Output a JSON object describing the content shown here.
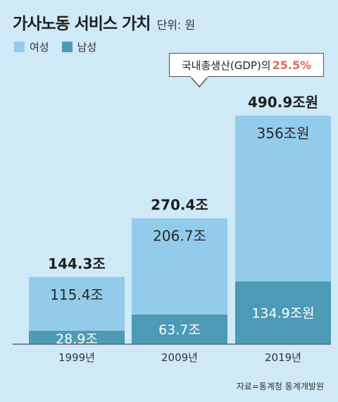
{
  "title": "가사노동 서비스 가치",
  "unit": "단위: 원",
  "legend": [
    {
      "name": "여성",
      "color": "#93cbea"
    },
    {
      "name": "남성",
      "color": "#4c9ab5"
    }
  ],
  "callout": {
    "text": "국내총생산(GDP)의",
    "value": "25.5%"
  },
  "source": "자료=통계청 통계개발원",
  "chart_data": {
    "type": "bar",
    "stacked": true,
    "categories": [
      "1999년",
      "2009년",
      "2019년"
    ],
    "series": [
      {
        "name": "남성",
        "values": [
          28.9,
          63.7,
          134.9
        ],
        "labels": [
          "28.9조",
          "63.7조",
          "134.9조원"
        ],
        "color": "#4c9ab5"
      },
      {
        "name": "여성",
        "values": [
          115.4,
          206.7,
          356
        ],
        "labels": [
          "115.4조",
          "206.7조",
          "356조원"
        ],
        "color": "#93cbea"
      }
    ],
    "totals": [
      144.3,
      270.4,
      490.9
    ],
    "total_labels": [
      "144.3조",
      "270.4조",
      "490.9조원"
    ],
    "ylim": [
      0,
      500
    ],
    "legend_position": "top-left",
    "grid": false
  }
}
